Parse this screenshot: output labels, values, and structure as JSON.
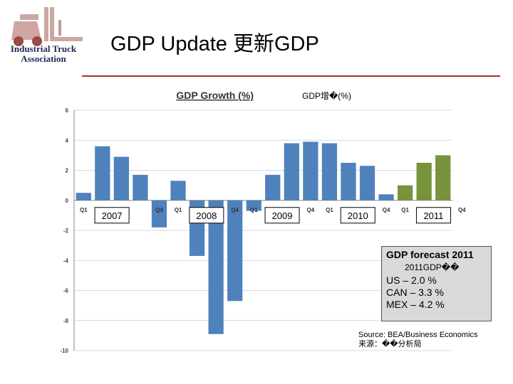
{
  "logo": {
    "line1": "Industrial Truck",
    "line2": "Association"
  },
  "slide": {
    "title": "GDP Update 更新GDP"
  },
  "chart_data": {
    "type": "bar",
    "title": "GDP Growth (%)",
    "subtitle": "GDP增�(%)",
    "ylim": [
      -10,
      6
    ],
    "yticks": [
      "6",
      "4",
      "2",
      "0",
      "-2",
      "-4",
      "-6",
      "-8",
      "-10"
    ],
    "quarter_labels": [
      "Q1",
      "Q4",
      "Q1",
      "Q4",
      "Q1",
      "Q4",
      "Q1",
      "Q4",
      "Q1",
      "Q4"
    ],
    "years": [
      "2007",
      "2008",
      "2009",
      "2010",
      "2011"
    ],
    "colors": {
      "actual": "#4f81bd",
      "forecast": "#77933c"
    },
    "series": [
      {
        "name": "Actual",
        "values": [
          0.5,
          3.6,
          2.9,
          1.7,
          -1.8,
          1.3,
          -3.7,
          -8.9,
          -6.7,
          -0.7,
          1.7,
          3.8,
          3.9,
          3.8,
          2.5,
          2.3,
          0.4
        ]
      },
      {
        "name": "Forecast",
        "values": [
          1.0,
          2.5,
          3.0
        ]
      }
    ]
  },
  "forecast_box": {
    "heading": "GDP forecast 2011",
    "subheading": "2011GDP��",
    "lines": [
      "US – 2.0 %",
      "CAN – 3.3 %",
      "MEX – 4.2 %"
    ]
  },
  "source": {
    "line1": "Source: BEA/Business Economics",
    "line2": "来源：��分析局"
  }
}
